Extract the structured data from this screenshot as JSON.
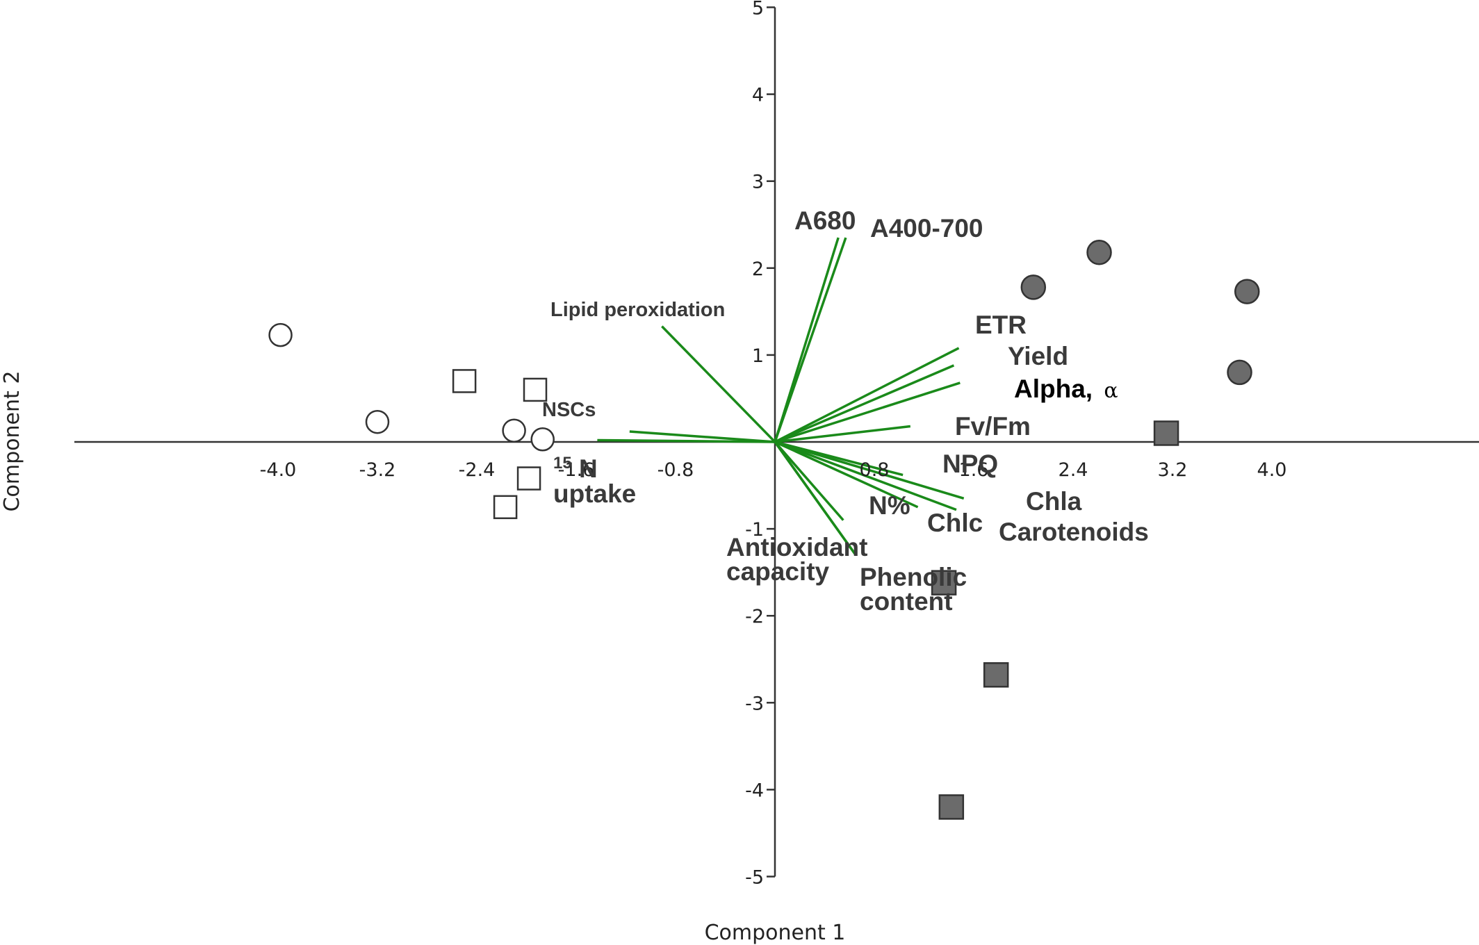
{
  "chart_data": {
    "type": "scatter",
    "title": "",
    "xlabel": "Component 1",
    "ylabel": "Component 2",
    "xlim": [
      -4.5,
      4.5
    ],
    "ylim": [
      -5,
      5
    ],
    "x_ticks": [
      "-4.0",
      "-3.2",
      "-2.4",
      "-1.6",
      "-0.8",
      "0.8",
      "1.6",
      "2.4",
      "3.2",
      "4.0"
    ],
    "x_tick_values": [
      -4.0,
      -3.2,
      -2.4,
      -1.6,
      -0.8,
      0.8,
      1.6,
      2.4,
      3.2,
      4.0
    ],
    "y_ticks": [
      "5",
      "4",
      "3",
      "2",
      "1",
      "-1",
      "-2",
      "-3",
      "-4",
      "-5"
    ],
    "y_tick_values": [
      5,
      4,
      3,
      2,
      1,
      -1,
      -2,
      -3,
      -4,
      -5
    ],
    "colors": {
      "loadings": "#1a8a1a",
      "filled": "#6b6b6b",
      "marker_edge": "#333333",
      "axis": "#333333"
    },
    "series": [
      {
        "marker": "open-circle",
        "points": [
          [
            -3.98,
            1.23
          ],
          [
            -3.2,
            0.23
          ],
          [
            -2.1,
            0.13
          ],
          [
            -1.87,
            0.03
          ]
        ]
      },
      {
        "marker": "open-square",
        "points": [
          [
            -2.5,
            0.7
          ],
          [
            -1.93,
            0.6
          ],
          [
            -1.98,
            -0.42
          ],
          [
            -2.17,
            -0.75
          ]
        ]
      },
      {
        "marker": "filled-circle",
        "points": [
          [
            2.08,
            1.78
          ],
          [
            2.61,
            2.18
          ],
          [
            3.8,
            1.73
          ],
          [
            3.74,
            0.8
          ]
        ]
      },
      {
        "marker": "filled-square",
        "points": [
          [
            3.15,
            0.1
          ],
          [
            1.36,
            -1.62
          ],
          [
            1.78,
            -2.68
          ],
          [
            1.42,
            -4.2
          ]
        ]
      }
    ],
    "loadings": [
      {
        "label": "A680",
        "x": 0.51,
        "y": 2.35
      },
      {
        "label": "A400-700",
        "x": 0.57,
        "y": 2.35
      },
      {
        "label": "Lipid peroxidation",
        "x": -0.91,
        "y": 1.33
      },
      {
        "label": "ETR",
        "x": 1.48,
        "y": 1.08
      },
      {
        "label": "Yield",
        "x": 1.44,
        "y": 0.88
      },
      {
        "label": "Alpha, α",
        "x": 1.49,
        "y": 0.68
      },
      {
        "label": "NSCs",
        "x": -1.17,
        "y": 0.12
      },
      {
        "label": "15N uptake",
        "x": -1.43,
        "y": 0.02
      },
      {
        "label": "Fv/Fm",
        "x": 1.09,
        "y": 0.18
      },
      {
        "label": "NPQ",
        "x": 1.03,
        "y": -0.38
      },
      {
        "label": "Chla",
        "x": 1.52,
        "y": -0.65
      },
      {
        "label": "Carotenoids",
        "x": 1.46,
        "y": -0.78
      },
      {
        "label": "Chlc",
        "x": 1.15,
        "y": -0.75
      },
      {
        "label": "N%",
        "x": 0.55,
        "y": -0.9
      },
      {
        "label": "Antioxidant capacity",
        "x": 0.65,
        "y": -1.3
      },
      {
        "label": "Phenolic content",
        "x": 0.65,
        "y": -1.3
      }
    ]
  },
  "labels": {
    "a680": "A680",
    "a400": "A400-700",
    "lipid": "Lipid peroxidation",
    "etr": "ETR",
    "yield": "Yield",
    "alpha_bold": "Alpha,",
    "alpha_symbol": "α",
    "nscs": "NSCs",
    "n15_sup": "15",
    "n15_main": "N",
    "uptake": "uptake",
    "fvfm": "Fv/Fm",
    "npq": "NPQ",
    "chla": "Chla",
    "carotenoids": "Carotenoids",
    "chlc": "Chlc",
    "npct": "N%",
    "antiox1": "Antioxidant",
    "antiox2": "capacity",
    "phenolic1": "Phenolic",
    "phenolic2": "content"
  }
}
